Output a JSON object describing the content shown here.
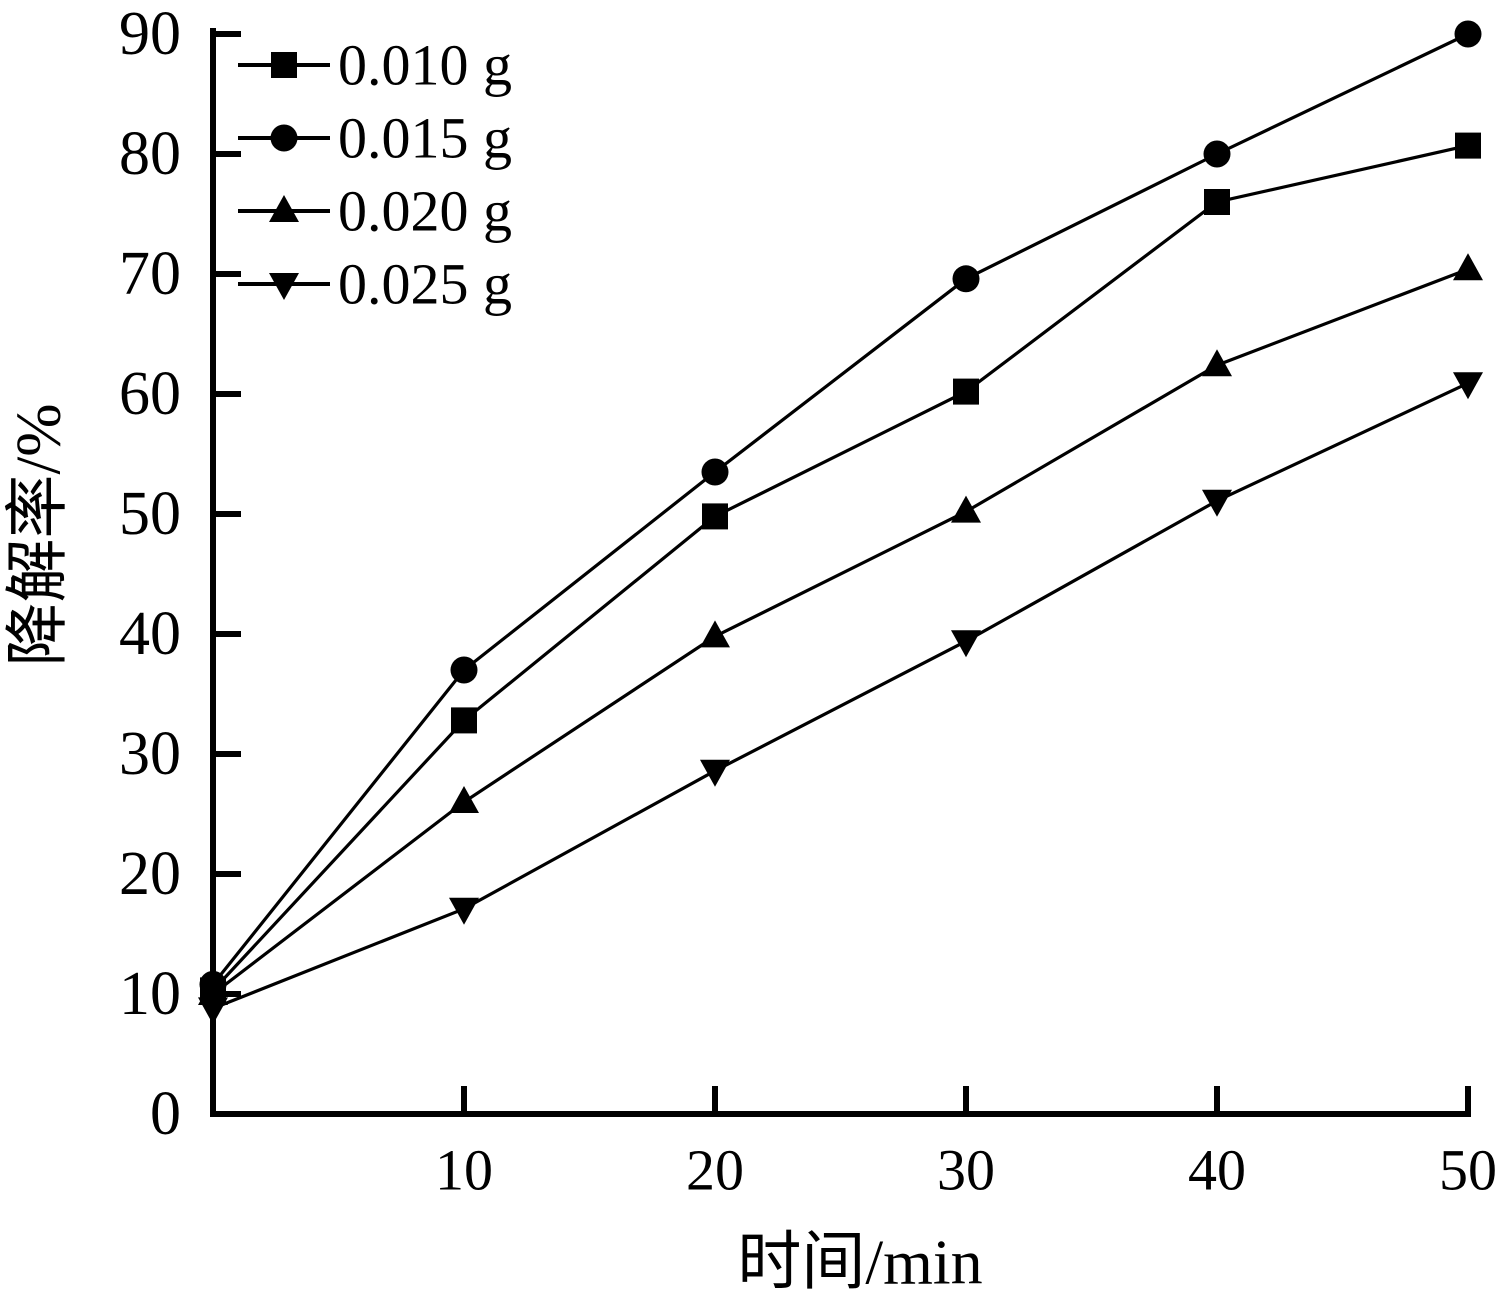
{
  "background_color": "#ffffff",
  "chart_data": {
    "type": "line",
    "title": "",
    "xlabel": "时间/min",
    "ylabel": "降解率/%",
    "xlim": [
      0,
      50
    ],
    "ylim": [
      0,
      90
    ],
    "x_ticks": [
      10,
      20,
      30,
      40,
      50
    ],
    "y_ticks": [
      0,
      10,
      20,
      30,
      40,
      50,
      60,
      70,
      80,
      90
    ],
    "grid": false,
    "legend_position": "top-left",
    "axis_color": "#000000",
    "series_color": "#000000",
    "x": [
      0,
      10,
      20,
      30,
      40,
      50
    ],
    "series": [
      {
        "name": "0.010 g",
        "marker": "square",
        "values": [
          10.3,
          32.8,
          49.8,
          60.2,
          76.0,
          80.7
        ]
      },
      {
        "name": "0.015 g",
        "marker": "circle",
        "values": [
          10.8,
          37.0,
          53.5,
          69.6,
          80.0,
          90.0
        ]
      },
      {
        "name": "0.020 g",
        "marker": "triangle-up",
        "values": [
          10.0,
          26.0,
          39.8,
          50.2,
          62.4,
          70.4
        ]
      },
      {
        "name": "0.025 g",
        "marker": "triangle-down",
        "values": [
          8.8,
          17.1,
          28.6,
          39.4,
          51.1,
          60.9
        ]
      }
    ]
  }
}
